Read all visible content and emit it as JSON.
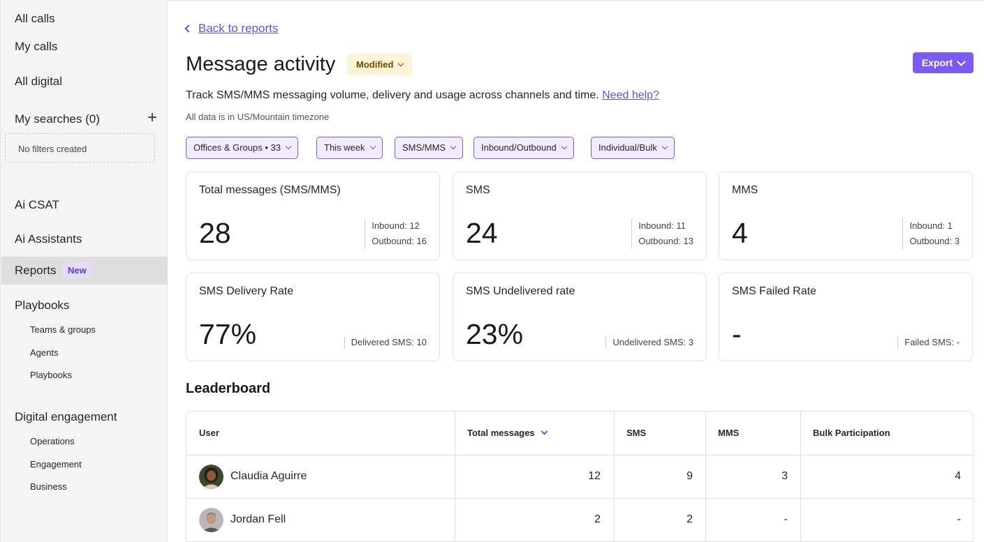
{
  "sidebar": {
    "all_calls": "All calls",
    "my_calls": "My calls",
    "all_digital": "All digital",
    "my_searches": "My searches (0)",
    "no_filters": "No filters created",
    "ai_csat": "Ai CSAT",
    "ai_assistants": "Ai Assistants",
    "reports": "Reports",
    "reports_badge": "New",
    "playbooks_section": "Playbooks",
    "playbooks_items": [
      "Teams & groups",
      "Agents",
      "Playbooks"
    ],
    "digital_section": "Digital engagement",
    "digital_items": [
      "Operations",
      "Engagement",
      "Business"
    ]
  },
  "header": {
    "back_label": "Back to reports",
    "title": "Message activity",
    "status_badge": "Modified",
    "export_label": "Export",
    "description": "Track SMS/MMS messaging volume, delivery and usage across channels and time.",
    "help_link": "Need help?",
    "timezone_note": "All data is in US/Mountain timezone"
  },
  "filters": [
    "Offices & Groups • 33",
    "This week",
    "SMS/MMS",
    "Inbound/Outbound",
    "Individual/Bulk"
  ],
  "cards": [
    {
      "title": "Total messages (SMS/MMS)",
      "value": "28",
      "line1": "Inbound: 12",
      "line2": "Outbound: 16"
    },
    {
      "title": "SMS",
      "value": "24",
      "line1": "Inbound: 11",
      "line2": "Outbound: 13"
    },
    {
      "title": "MMS",
      "value": "4",
      "line1": "Inbound: 1",
      "line2": "Outbound: 3"
    },
    {
      "title": "SMS Delivery Rate",
      "value": "77%",
      "line1": "Delivered SMS: 10"
    },
    {
      "title": "SMS Undelivered rate",
      "value": "23%",
      "line1": "Undelivered SMS: 3"
    },
    {
      "title": "SMS Failed Rate",
      "value": "-",
      "line1": "Failed SMS: -"
    }
  ],
  "leaderboard": {
    "title": "Leaderboard",
    "columns": [
      "User",
      "Total messages",
      "SMS",
      "MMS",
      "Bulk Participation"
    ],
    "rows": [
      {
        "user": "Claudia Aguirre",
        "total": "12",
        "sms": "9",
        "mms": "3",
        "bulk": "4"
      },
      {
        "user": "Jordan Fell",
        "total": "2",
        "sms": "2",
        "mms": "-",
        "bulk": "-"
      }
    ]
  },
  "colors": {
    "accent": "#7c5cf0",
    "link": "#6b4ee0",
    "badge_bg": "#fdf3d6",
    "chip_bg": "#f1edfd"
  }
}
